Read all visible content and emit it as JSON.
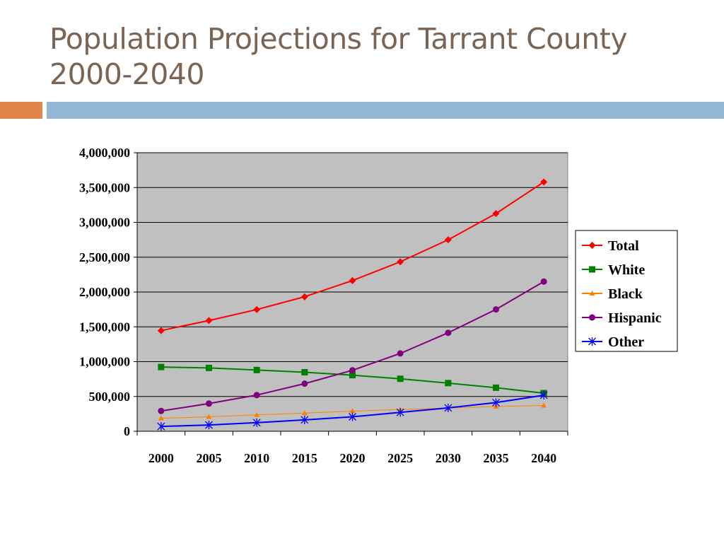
{
  "slide": {
    "title_line1": "Population Projections for Tarrant County",
    "title_line2": "2000-2040"
  },
  "colors": {
    "title": "#7b6454",
    "accent_orange": "#e0864a",
    "accent_blue": "#93b6d6",
    "plot_background": "#c0c0c0"
  },
  "chart_data": {
    "type": "line",
    "title": "",
    "xlabel": "",
    "ylabel": "",
    "categories": [
      "2000",
      "2005",
      "2010",
      "2015",
      "2020",
      "2025",
      "2030",
      "2035",
      "2040"
    ],
    "ylim": [
      0,
      4000000
    ],
    "yticks": [
      0,
      500000,
      1000000,
      1500000,
      2000000,
      2500000,
      3000000,
      3500000,
      4000000
    ],
    "ytick_labels": [
      "0",
      "500,000",
      "1,000,000",
      "1,500,000",
      "2,000,000",
      "2,500,000",
      "3,000,000",
      "3,500,000",
      "4,000,000"
    ],
    "grid": true,
    "legend_position": "right",
    "series": [
      {
        "name": "Total",
        "color": "#ff0000",
        "marker": "diamond",
        "values": [
          1446000,
          1590000,
          1748000,
          1932000,
          2164000,
          2434000,
          2750000,
          3127000,
          3580000
        ]
      },
      {
        "name": "White",
        "color": "#008000",
        "marker": "square",
        "values": [
          923000,
          910000,
          880000,
          848000,
          806000,
          754000,
          692000,
          626000,
          548000
        ]
      },
      {
        "name": "Black",
        "color": "#ff8000",
        "marker": "triangle",
        "values": [
          186000,
          208000,
          236000,
          262000,
          290000,
          312000,
          334000,
          356000,
          370000
        ]
      },
      {
        "name": "Hispanic",
        "color": "#800080",
        "marker": "circle",
        "values": [
          292000,
          398000,
          520000,
          684000,
          876000,
          1118000,
          1414000,
          1750000,
          2150000
        ]
      },
      {
        "name": "Other",
        "color": "#0000ff",
        "marker": "star",
        "values": [
          70000,
          90000,
          124000,
          164000,
          208000,
          272000,
          336000,
          412000,
          518000
        ]
      }
    ]
  }
}
